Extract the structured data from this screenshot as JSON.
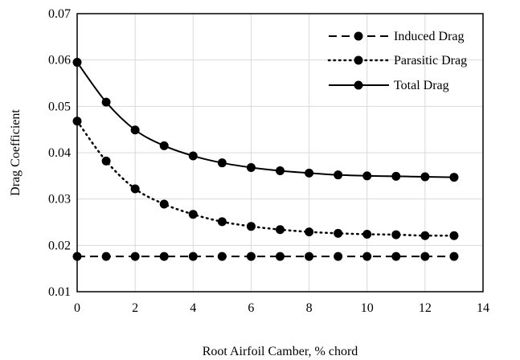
{
  "chart_data": {
    "type": "line",
    "xlabel": "Root Airfoil Camber, % chord",
    "ylabel": "Drag Coefficient",
    "xlim": [
      0,
      14
    ],
    "ylim": [
      0.01,
      0.07
    ],
    "xticks": [
      0,
      2,
      4,
      6,
      8,
      10,
      12,
      14
    ],
    "yticks": [
      0.01,
      0.02,
      0.03,
      0.04,
      0.05,
      0.06,
      0.07
    ],
    "xtick_labels": [
      "0",
      "2",
      "4",
      "6",
      "8",
      "10",
      "12",
      "14"
    ],
    "ytick_labels": [
      "0.01",
      "0.02",
      "0.03",
      "0.04",
      "0.05",
      "0.06",
      "0.07"
    ],
    "grid": true,
    "legend_position": "top-right",
    "x": [
      0,
      1,
      2,
      3,
      4,
      5,
      6,
      7,
      8,
      9,
      10,
      11,
      12,
      13
    ],
    "series": [
      {
        "name": "Induced Drag",
        "line_style": "dashed",
        "color": "#000000",
        "values": [
          0.0176,
          0.0176,
          0.0176,
          0.0176,
          0.0176,
          0.0176,
          0.0176,
          0.0176,
          0.0176,
          0.0176,
          0.0176,
          0.0176,
          0.0176,
          0.0176
        ]
      },
      {
        "name": "Parasitic Drag",
        "line_style": "dotted",
        "color": "#000000",
        "values": [
          0.0468,
          0.0382,
          0.0322,
          0.0289,
          0.0267,
          0.0251,
          0.0241,
          0.0234,
          0.0229,
          0.0226,
          0.0224,
          0.0223,
          0.0221,
          0.0221
        ]
      },
      {
        "name": "Total Drag",
        "line_style": "solid",
        "color": "#000000",
        "values": [
          0.0595,
          0.0509,
          0.0449,
          0.0415,
          0.0393,
          0.0378,
          0.0368,
          0.0361,
          0.0356,
          0.0352,
          0.035,
          0.0349,
          0.0348,
          0.0347
        ]
      }
    ]
  }
}
